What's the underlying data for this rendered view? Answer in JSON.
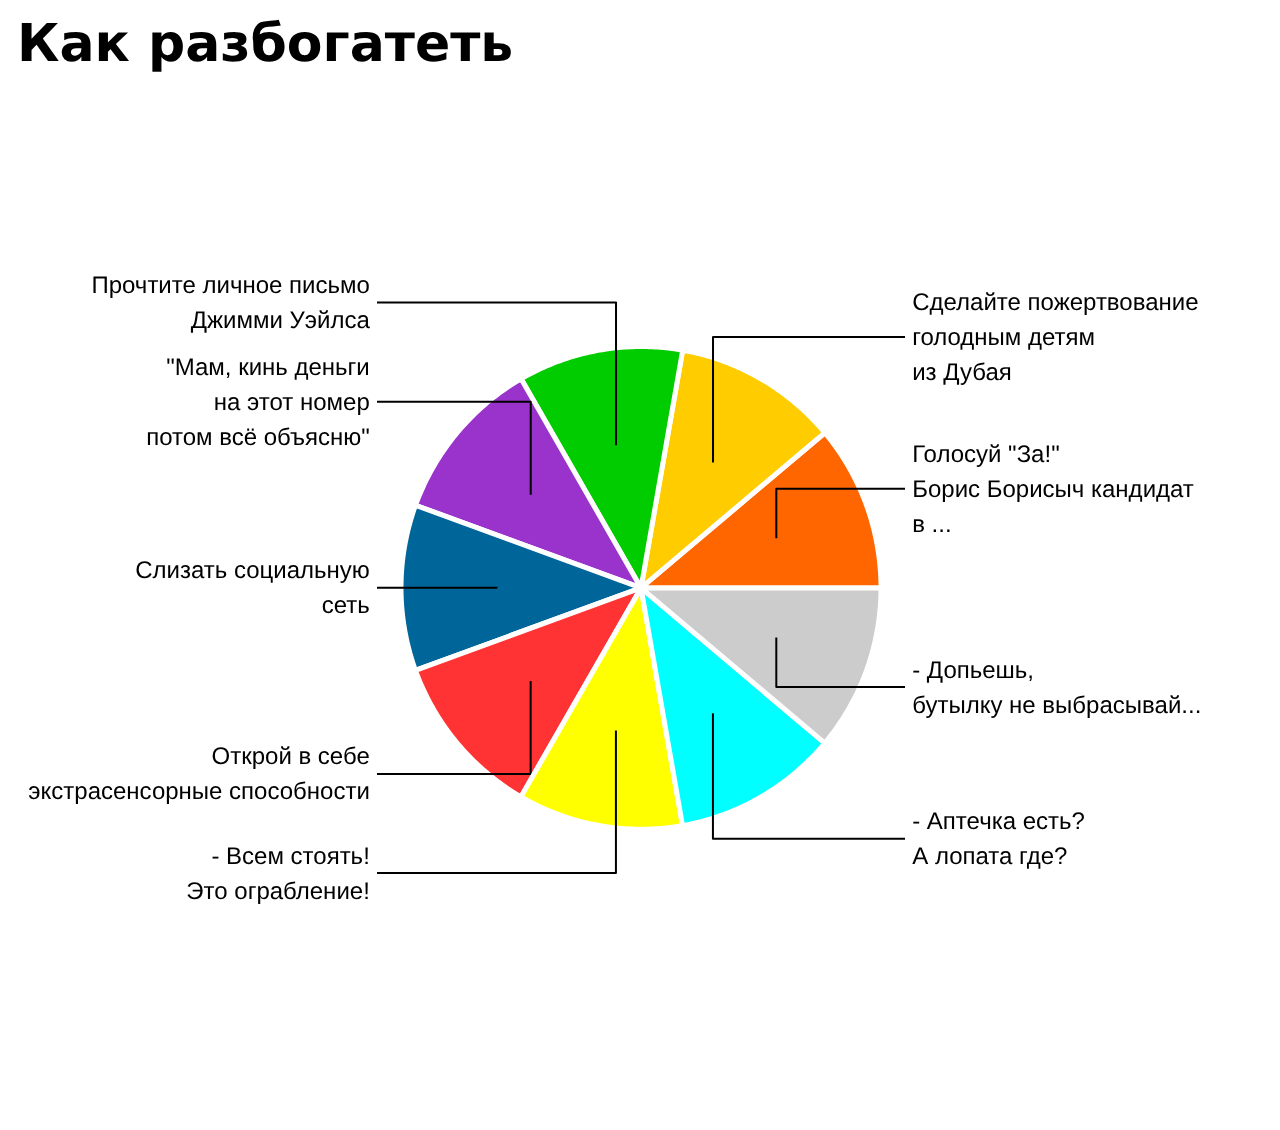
{
  "chart_data": {
    "type": "pie",
    "title": "Как разбогатеть",
    "categories": [
      "Голосуй \"За!\"\nБорис Борисыч кандидат\nв ...",
      "Сделайте пожертвование\nголодным детям\nиз Дубая",
      "Прочтите личное письмо\nДжимми Уэйлса",
      "\"Мам, кинь деньги\nна этот номер\nпотом всё объясню\"",
      "Слизать социальную\nсеть",
      "Открой в себе\nэкстрасенсорные способности",
      "- Всем стоять!\nЭто ограбление!",
      "- Аптечка есть?\nА лопата где?",
      "- Допьешь,\nбутылку не выбрасывай..."
    ],
    "values": [
      11.11,
      11.11,
      11.11,
      11.11,
      11.11,
      11.11,
      11.11,
      11.11,
      11.12
    ],
    "colors": [
      "#ff6600",
      "#ffcc00",
      "#00cc00",
      "#9933cc",
      "#006699",
      "#ff3333",
      "#ffff00",
      "#00ffff",
      "#cccccc"
    ]
  }
}
